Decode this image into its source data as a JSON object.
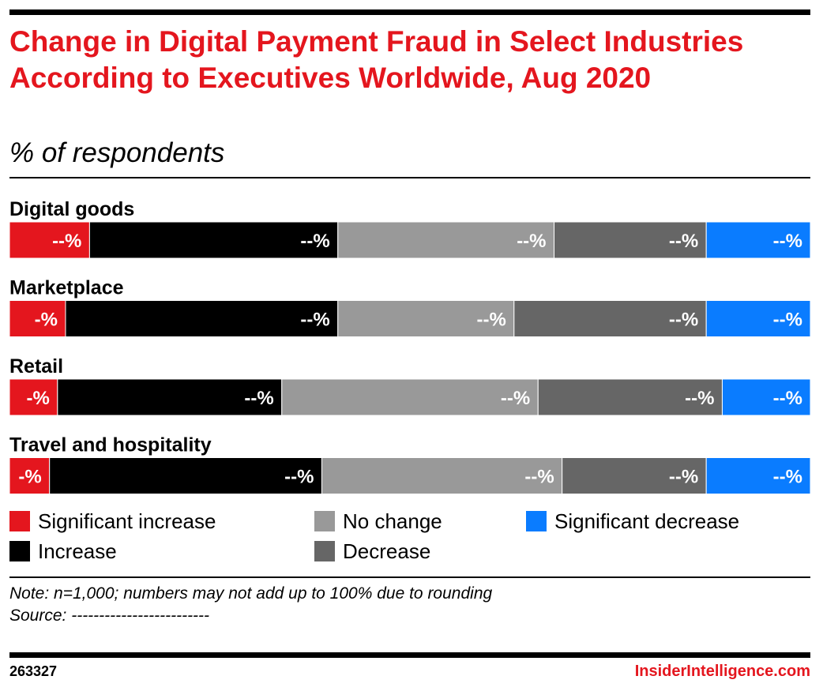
{
  "chart_data": {
    "type": "bar",
    "orientation": "horizontal",
    "stacked": true,
    "title": "Change in Digital Payment Fraud in Select Industries According to Executives Worldwide, Aug 2020",
    "subtitle": "% of respondents",
    "categories": [
      "Digital goods",
      "Marketplace",
      "Retail",
      "Travel and hospitality"
    ],
    "series": [
      {
        "name": "Significant increase",
        "color": "#e4161e",
        "values": [
          10,
          7,
          6,
          5
        ],
        "labels": [
          "--%",
          "-%",
          "-%",
          "-%"
        ]
      },
      {
        "name": "Increase",
        "color": "#000000",
        "values": [
          31,
          34,
          28,
          34
        ],
        "labels": [
          "--%",
          "--%",
          "--%",
          "--%"
        ]
      },
      {
        "name": "No change",
        "color": "#999999",
        "values": [
          27,
          22,
          32,
          30
        ],
        "labels": [
          "--%",
          "--%",
          "--%",
          "--%"
        ]
      },
      {
        "name": "Decrease",
        "color": "#666666",
        "values": [
          19,
          24,
          23,
          18
        ],
        "labels": [
          "--%",
          "--%",
          "--%",
          "--%"
        ]
      },
      {
        "name": "Significant decrease",
        "color": "#0a7cff",
        "values": [
          13,
          13,
          11,
          13
        ],
        "labels": [
          "--%",
          "--%",
          "--%",
          "--%"
        ]
      }
    ],
    "xlim": [
      0,
      100
    ],
    "legend_position": "bottom",
    "grid": false,
    "note": "Note: n=1,000; numbers may not add up to 100% due to rounding",
    "source": "Source: -------------------------"
  },
  "footer": {
    "chart_id": "263327",
    "brand": "InsiderIntelligence.com"
  }
}
